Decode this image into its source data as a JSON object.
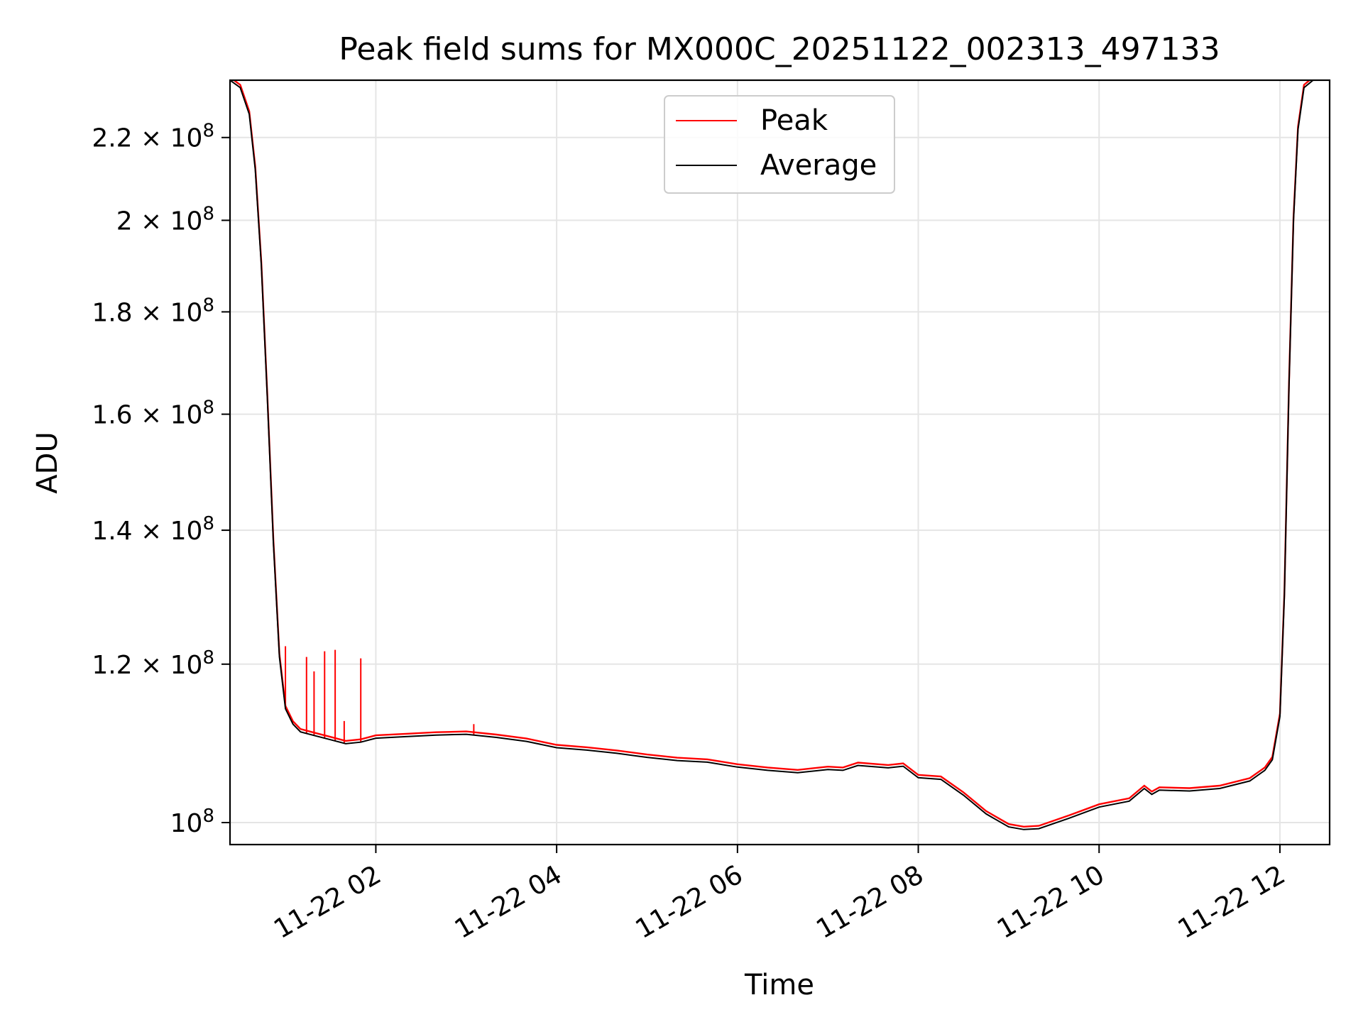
{
  "chart_data": {
    "type": "line",
    "title": "Peak field sums for MX000C_20251122_002313_497133",
    "xlabel": "Time",
    "ylabel": "ADU",
    "y_scale": "log",
    "ylim": [
      97500000,
      235000000
    ],
    "xlim": [
      "2025-11-22 00:23:13",
      "2025-11-22 12:33:00"
    ],
    "grid": true,
    "legend_position": "top-center",
    "x_ticks": [
      {
        "value": "2025-11-22 02:00",
        "label": "11-22 02"
      },
      {
        "value": "2025-11-22 04:00",
        "label": "11-22 04"
      },
      {
        "value": "2025-11-22 06:00",
        "label": "11-22 06"
      },
      {
        "value": "2025-11-22 08:00",
        "label": "11-22 08"
      },
      {
        "value": "2025-11-22 10:00",
        "label": "11-22 10"
      },
      {
        "value": "2025-11-22 12:00",
        "label": "11-22 12"
      }
    ],
    "y_ticks": [
      {
        "value": 100000000,
        "mantissa": "",
        "exponent": "8"
      },
      {
        "value": 120000000,
        "mantissa": "1.2",
        "exponent": "8"
      },
      {
        "value": 140000000,
        "mantissa": "1.4",
        "exponent": "8"
      },
      {
        "value": 160000000,
        "mantissa": "1.6",
        "exponent": "8"
      },
      {
        "value": 180000000,
        "mantissa": "1.8",
        "exponent": "8"
      },
      {
        "value": 200000000,
        "mantissa": "2",
        "exponent": "8"
      },
      {
        "value": 220000000,
        "mantissa": "2.2",
        "exponent": "8"
      }
    ],
    "series": [
      {
        "name": "Average",
        "color": "#000000",
        "x": [
          "2025-11-22 00:23:13",
          "2025-11-22 00:30",
          "2025-11-22 00:36",
          "2025-11-22 00:40",
          "2025-11-22 00:44",
          "2025-11-22 00:48",
          "2025-11-22 00:52",
          "2025-11-22 00:56",
          "2025-11-22 01:00",
          "2025-11-22 01:05",
          "2025-11-22 01:10",
          "2025-11-22 01:20",
          "2025-11-22 01:30",
          "2025-11-22 01:40",
          "2025-11-22 01:50",
          "2025-11-22 02:00",
          "2025-11-22 02:20",
          "2025-11-22 02:40",
          "2025-11-22 03:00",
          "2025-11-22 03:20",
          "2025-11-22 03:40",
          "2025-11-22 04:00",
          "2025-11-22 04:20",
          "2025-11-22 04:40",
          "2025-11-22 05:00",
          "2025-11-22 05:20",
          "2025-11-22 05:40",
          "2025-11-22 06:00",
          "2025-11-22 06:20",
          "2025-11-22 06:40",
          "2025-11-22 07:00",
          "2025-11-22 07:10",
          "2025-11-22 07:20",
          "2025-11-22 07:40",
          "2025-11-22 07:50",
          "2025-11-22 08:00",
          "2025-11-22 08:15",
          "2025-11-22 08:30",
          "2025-11-22 08:45",
          "2025-11-22 09:00",
          "2025-11-22 09:10",
          "2025-11-22 09:20",
          "2025-11-22 09:40",
          "2025-11-22 10:00",
          "2025-11-22 10:20",
          "2025-11-22 10:30",
          "2025-11-22 10:35",
          "2025-11-22 10:40",
          "2025-11-22 11:00",
          "2025-11-22 11:20",
          "2025-11-22 11:40",
          "2025-11-22 11:50",
          "2025-11-22 11:55",
          "2025-11-22 12:00",
          "2025-11-22 12:03",
          "2025-11-22 12:06",
          "2025-11-22 12:09",
          "2025-11-22 12:12",
          "2025-11-22 12:16",
          "2025-11-22 12:22",
          "2025-11-22 12:33"
        ],
        "values": [
          235000000,
          233000000,
          226000000,
          212000000,
          190000000,
          163000000,
          138000000,
          121000000,
          114000000,
          112000000,
          111000000,
          110500000,
          110000000,
          109500000,
          109700000,
          110200000,
          110400000,
          110600000,
          110700000,
          110300000,
          109800000,
          109000000,
          108700000,
          108300000,
          107800000,
          107400000,
          107200000,
          106600000,
          106200000,
          105900000,
          106300000,
          106200000,
          106800000,
          106500000,
          106700000,
          105300000,
          105100000,
          103200000,
          101000000,
          99500000,
          99200000,
          99300000,
          100500000,
          101800000,
          102500000,
          104000000,
          103300000,
          103800000,
          103700000,
          104000000,
          104900000,
          106200000,
          107500000,
          113000000,
          130000000,
          165000000,
          200000000,
          222000000,
          233000000,
          235000000,
          235000000
        ]
      },
      {
        "name": "Peak",
        "color": "#ff0000",
        "spikes": [
          {
            "x": "2025-11-22 01:00",
            "y": 122500000
          },
          {
            "x": "2025-11-22 01:14",
            "y": 121000000
          },
          {
            "x": "2025-11-22 01:19",
            "y": 119000000
          },
          {
            "x": "2025-11-22 01:26",
            "y": 121800000
          },
          {
            "x": "2025-11-22 01:33",
            "y": 122000000
          },
          {
            "x": "2025-11-22 01:39",
            "y": 112400000
          },
          {
            "x": "2025-11-22 01:50",
            "y": 120800000
          },
          {
            "x": "2025-11-22 03:05",
            "y": 112000000
          }
        ]
      }
    ]
  }
}
